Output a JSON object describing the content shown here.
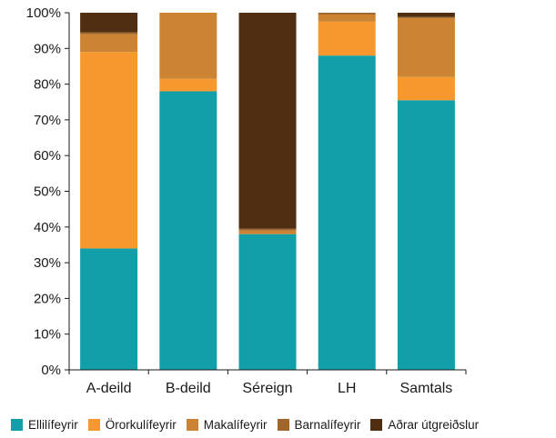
{
  "chart_data": {
    "type": "bar",
    "stacked": true,
    "categories": [
      "A-deild",
      "B-deild",
      "Séreign",
      "LH",
      "Samtals"
    ],
    "series": [
      {
        "name": "Ellilífeyrir",
        "color": "#129fa9",
        "values": [
          34,
          78,
          38,
          88,
          75.5
        ]
      },
      {
        "name": "Örorkulífeyrir",
        "color": "#f7982f",
        "values": [
          55,
          3.5,
          0,
          9.5,
          6.5
        ]
      },
      {
        "name": "Makalífeyrir",
        "color": "#cc8433",
        "values": [
          5,
          18.5,
          1,
          2,
          16.5
        ]
      },
      {
        "name": "Barnalífeyrir",
        "color": "#a0662b",
        "values": [
          0.5,
          0,
          0.5,
          0.5,
          0.3
        ]
      },
      {
        "name": "Aðrar útgreiðslur",
        "color": "#4f2e12",
        "values": [
          5.5,
          0,
          60.5,
          0,
          1.2
        ]
      }
    ],
    "y_ticks": [
      "0%",
      "10%",
      "20%",
      "30%",
      "40%",
      "50%",
      "60%",
      "70%",
      "80%",
      "90%",
      "100%"
    ],
    "ylim": [
      0,
      100
    ],
    "grid": false,
    "legend_position": "bottom",
    "title": "",
    "xlabel": "",
    "ylabel": ""
  }
}
